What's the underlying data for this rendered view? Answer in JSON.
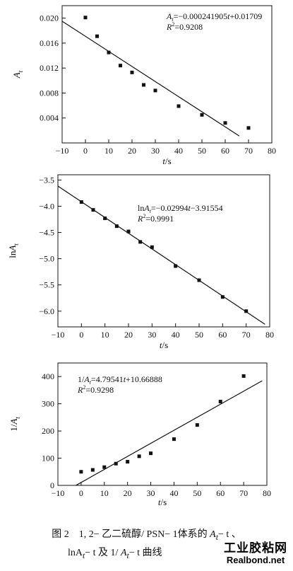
{
  "chart_data": [
    {
      "type": "scatter",
      "title": "",
      "xlabel": "t/s",
      "ylabel": "A_t",
      "xlim": [
        -10,
        80
      ],
      "ylim": [
        0.0,
        0.022
      ],
      "xticks": [
        -10,
        0,
        10,
        20,
        30,
        40,
        50,
        60,
        70,
        80
      ],
      "yticks": [
        0.004,
        0.008,
        0.012,
        0.016,
        0.02
      ],
      "ytick_labels": [
        "0.004",
        "0.008",
        "0.012",
        "0.016",
        "0.020"
      ],
      "series": [
        {
          "x": [
            0,
            5,
            10,
            15,
            20,
            25,
            30,
            40,
            50,
            60,
            70
          ],
          "y": [
            0.0201,
            0.0171,
            0.0145,
            0.0124,
            0.0113,
            0.0093,
            0.0084,
            0.0059,
            0.0045,
            0.0032,
            0.0024
          ]
        }
      ],
      "fit": {
        "slope": -0.000241905,
        "intercept": 0.01709,
        "x_range": [
          -10,
          66
        ]
      },
      "equation": {
        "lhs": "A",
        "sub": "t",
        "rhs": "=−0.000241905",
        "var": "t",
        "tail": "+0.01709"
      },
      "r2": {
        "label": "R",
        "sup": "2",
        "value": "=0.9208"
      }
    },
    {
      "type": "scatter",
      "title": "",
      "xlabel": "t/s",
      "ylabel": "lnA_t",
      "xlim": [
        -10,
        80
      ],
      "ylim": [
        -6.3,
        -3.4
      ],
      "xticks": [
        -10,
        0,
        10,
        20,
        30,
        40,
        50,
        60,
        70,
        80
      ],
      "yticks": [
        -6.0,
        -5.5,
        -5.0,
        -4.5,
        -4.0,
        -3.5
      ],
      "ytick_labels": [
        "−6.0",
        "−5.5",
        "−5.0",
        "−4.5",
        "−4.0",
        "−3.5"
      ],
      "series": [
        {
          "x": [
            0,
            5,
            10,
            15,
            20,
            25,
            30,
            40,
            50,
            60,
            70
          ],
          "y": [
            -3.92,
            -4.07,
            -4.23,
            -4.38,
            -4.48,
            -4.68,
            -4.78,
            -5.14,
            -5.41,
            -5.73,
            -6.0
          ]
        }
      ],
      "fit": {
        "slope": -0.02994,
        "intercept": -3.91554,
        "x_range": [
          -10,
          78
        ]
      },
      "equation": {
        "lhs": "lnA",
        "sub": "t",
        "rhs": "=−0.02994",
        "var": "t",
        "tail": "−3.91554"
      },
      "r2": {
        "label": "R",
        "sup": "2",
        "value": "=0.9991"
      }
    },
    {
      "type": "scatter",
      "title": "",
      "xlabel": "t/s",
      "ylabel": "1/A_t",
      "xlim": [
        -10,
        80
      ],
      "ylim": [
        0,
        450
      ],
      "xticks": [
        -10,
        0,
        10,
        20,
        30,
        40,
        50,
        60,
        70,
        80
      ],
      "yticks": [
        0,
        100,
        200,
        300,
        400
      ],
      "ytick_labels": [
        "0",
        "100",
        "200",
        "300",
        "400"
      ],
      "series": [
        {
          "x": [
            0,
            5,
            10,
            15,
            20,
            25,
            30,
            40,
            50,
            60,
            70
          ],
          "y": [
            50,
            57,
            67,
            80,
            87,
            107,
            118,
            170,
            222,
            308,
            402
          ]
        }
      ],
      "fit": {
        "slope": 4.79541,
        "intercept": 10.66888,
        "x_range": [
          -2.2,
          78
        ]
      },
      "equation": {
        "lhs": "1/A",
        "sub": "t",
        "rhs": "=4.79541",
        "var": "t",
        "tail": "+10.66888"
      },
      "r2": {
        "label": "R",
        "sup": "2",
        "value": "=0.9298"
      }
    }
  ],
  "caption": {
    "line1_prefix": "图 2　1, 2− 乙二硫醇/ PSN− 1体系的 ",
    "line1_a": "A",
    "line1_sub": "t",
    "line1_suffix": "− t 、",
    "line2_a": "lnA",
    "line2_sub": "t",
    "line2_mid": "− t 及 1/ ",
    "line2_a2": "A",
    "line2_sub2": "t",
    "line2_suffix": "− t 曲线"
  },
  "watermark": {
    "cn": "工业胶粘网",
    "en": "Realbond.net"
  }
}
